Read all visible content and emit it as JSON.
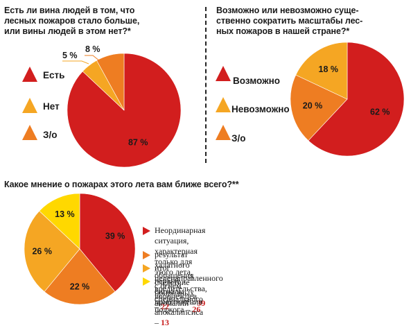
{
  "colors": {
    "red": "#d21e1e",
    "orange": "#ee7d22",
    "amber": "#f5a623",
    "yellow": "#ffd800"
  },
  "chart_data": [
    {
      "type": "pie",
      "title": "Есть ли вина людей в том, что\nлесных пожаров стало больше,\nили вины людей в этом нет?*",
      "categories": [
        "Есть",
        "Нет",
        "З/о"
      ],
      "values": [
        87,
        5,
        8
      ],
      "labels": [
        "87 %",
        "5 %",
        "8 %"
      ],
      "colors": [
        "#d21e1e",
        "#f5a623",
        "#ee7d22"
      ]
    },
    {
      "type": "pie",
      "title": "Возможно или невозможно суще-\nственно сократить масштабы лес-\nных пожаров в нашей стране?*",
      "categories": [
        "Возможно",
        "Невозможно",
        "З/о"
      ],
      "values": [
        62,
        18,
        20
      ],
      "labels": [
        "62 %",
        "18 %",
        "20 %"
      ],
      "colors": [
        "#d21e1e",
        "#f5a623",
        "#ee7d22"
      ]
    },
    {
      "type": "pie",
      "title": "Какое мнение о пожарах этого лета вам ближе всего?**",
      "categories": [
        "Неординарная ситуация, характерная только для этого лета, следствие природных аномалий",
        "результат халатного обращения с огнем воронежцев",
        "итог целенаправленного вредительства, специального поджога",
        "первые сигналы приближения апокалипсиса"
      ],
      "values": [
        39,
        22,
        26,
        13
      ],
      "labels": [
        "39 %",
        "22 %",
        "26 %",
        "13 %"
      ],
      "colors": [
        "#d21e1e",
        "#ee7d22",
        "#f5a623",
        "#ffd800"
      ]
    }
  ],
  "legend3": [
    {
      "line1": "Неординарная ситуация, характерная только для этого лета,",
      "line2": "следствие природных аномалий – ",
      "value": "39"
    },
    {
      "line1": "результат халатного обращения с огнем воронежцев – ",
      "value": "22"
    },
    {
      "line1": "итог целенаправленного вредительства, специального поджога – ",
      "value": "26"
    },
    {
      "line1": "первые сигналы приближения апокалипсиса – ",
      "value": "13"
    }
  ]
}
